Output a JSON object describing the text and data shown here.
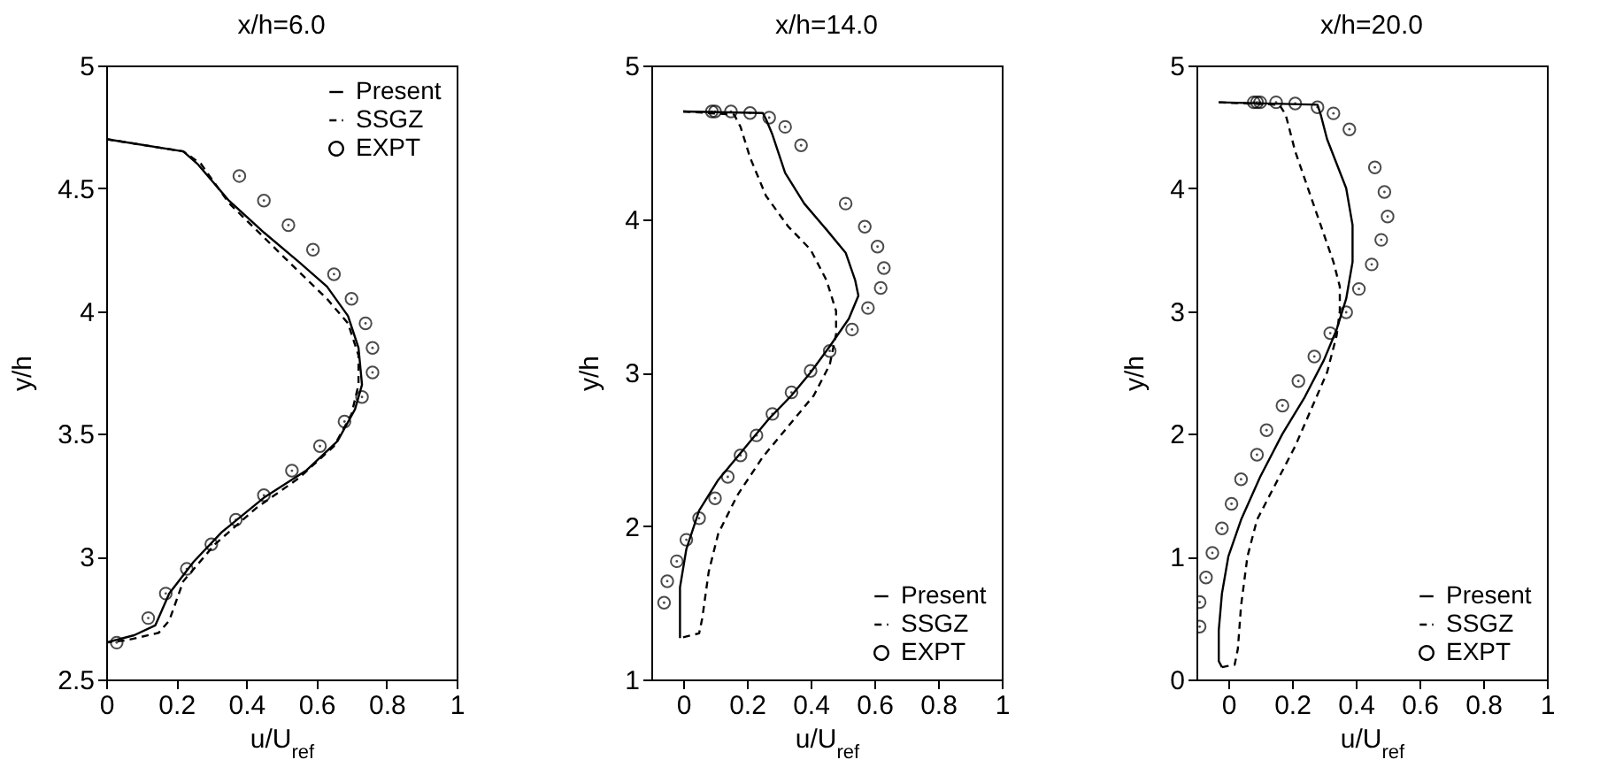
{
  "chart_data": [
    {
      "type": "line",
      "title": "x/h=6.0",
      "xlabel": "u/U$_{ref}$",
      "ylabel": "y/h",
      "xlim": [
        0,
        1
      ],
      "xticks": [
        0,
        0.2,
        0.4,
        0.6,
        0.8,
        1
      ],
      "ylim": [
        2.5,
        5
      ],
      "yticks": [
        2.5,
        3,
        3.5,
        4,
        4.5,
        5
      ],
      "legend": "top right",
      "series": [
        {
          "name": "Present",
          "type": "line",
          "color": "#000000",
          "line_style": "solid",
          "x": [
            0,
            0.22,
            0.26,
            0.35,
            0.45,
            0.55,
            0.63,
            0.69,
            0.72,
            0.73,
            0.71,
            0.66,
            0.57,
            0.45,
            0.33,
            0.25,
            0.18,
            0.14,
            0.08,
            0
          ],
          "values": [
            4.7,
            4.65,
            4.6,
            4.45,
            4.32,
            4.2,
            4.1,
            3.98,
            3.85,
            3.7,
            3.6,
            3.47,
            3.35,
            3.24,
            3.1,
            2.98,
            2.85,
            2.72,
            2.68,
            2.65
          ]
        },
        {
          "name": "SSGZ",
          "type": "line",
          "color": "#000000",
          "line_style": "dashed",
          "x": [
            0,
            0.22,
            0.27,
            0.35,
            0.45,
            0.55,
            0.63,
            0.69,
            0.72,
            0.72,
            0.7,
            0.65,
            0.55,
            0.43,
            0.31,
            0.22,
            0.18,
            0.15,
            0.06,
            0
          ],
          "values": [
            4.7,
            4.65,
            4.6,
            4.44,
            4.3,
            4.16,
            4.05,
            3.95,
            3.82,
            3.7,
            3.58,
            3.45,
            3.32,
            3.2,
            3.05,
            2.9,
            2.74,
            2.69,
            2.66,
            2.65
          ]
        },
        {
          "name": "EXPT",
          "type": "scatter",
          "color": "#000000",
          "marker": "circle",
          "x": [
            0.38,
            0.45,
            0.52,
            0.59,
            0.65,
            0.7,
            0.74,
            0.76,
            0.76,
            0.73,
            0.68,
            0.61,
            0.53,
            0.45,
            0.37,
            0.3,
            0.23,
            0.17,
            0.12,
            0.03
          ],
          "values": [
            4.55,
            4.45,
            4.35,
            4.25,
            4.15,
            4.05,
            3.95,
            3.85,
            3.75,
            3.65,
            3.55,
            3.45,
            3.35,
            3.25,
            3.15,
            3.05,
            2.95,
            2.85,
            2.75,
            2.65
          ]
        }
      ]
    },
    {
      "type": "line",
      "title": "x/h=14.0",
      "xlabel": "u/U$_{ref}$",
      "ylabel": "y/h",
      "xlim": [
        -0.1,
        1
      ],
      "xticks": [
        0,
        0.2,
        0.4,
        0.6,
        0.8,
        1
      ],
      "ylim": [
        1,
        5
      ],
      "yticks": [
        1,
        2,
        3,
        4,
        5
      ],
      "legend": "bottom right",
      "series": [
        {
          "name": "Present",
          "type": "line",
          "color": "#000000",
          "line_style": "solid",
          "x": [
            0,
            0.25,
            0.26,
            0.28,
            0.32,
            0.38,
            0.45,
            0.51,
            0.54,
            0.55,
            0.52,
            0.46,
            0.4,
            0.34,
            0.27,
            0.19,
            0.11,
            0.05,
            0.01,
            -0.01,
            -0.01,
            -0.01
          ],
          "values": [
            4.7,
            4.69,
            4.65,
            4.55,
            4.3,
            4.1,
            3.93,
            3.78,
            3.6,
            3.5,
            3.35,
            3.17,
            3.0,
            2.85,
            2.7,
            2.5,
            2.3,
            2.1,
            1.85,
            1.6,
            1.3,
            1.27
          ]
        },
        {
          "name": "SSGZ",
          "type": "line",
          "color": "#000000",
          "line_style": "dashed",
          "x": [
            0,
            0.16,
            0.18,
            0.21,
            0.26,
            0.33,
            0.4,
            0.45,
            0.48,
            0.48,
            0.46,
            0.41,
            0.33,
            0.25,
            0.17,
            0.11,
            0.08,
            0.06,
            0.05,
            -0.01
          ],
          "values": [
            4.7,
            4.68,
            4.6,
            4.4,
            4.15,
            3.95,
            3.8,
            3.6,
            3.4,
            3.25,
            3.05,
            2.85,
            2.65,
            2.45,
            2.2,
            1.95,
            1.7,
            1.4,
            1.3,
            1.27
          ]
        },
        {
          "name": "EXPT",
          "type": "scatter",
          "color": "#000000",
          "marker": "circle",
          "x": [
            0.09,
            0.1,
            0.15,
            0.21,
            0.27,
            0.32,
            0.37,
            0.51,
            0.57,
            0.61,
            0.63,
            0.62,
            0.58,
            0.53,
            0.46,
            0.4,
            0.34,
            0.28,
            0.23,
            0.18,
            0.14,
            0.1,
            0.05,
            0.01,
            -0.02,
            -0.05,
            -0.06
          ],
          "values": [
            4.7,
            4.7,
            4.7,
            4.69,
            4.66,
            4.6,
            4.48,
            4.1,
            3.95,
            3.82,
            3.68,
            3.55,
            3.42,
            3.28,
            3.14,
            3.01,
            2.87,
            2.73,
            2.59,
            2.46,
            2.32,
            2.18,
            2.05,
            1.91,
            1.77,
            1.64,
            1.5
          ]
        }
      ]
    },
    {
      "type": "line",
      "title": "x/h=20.0",
      "xlabel": "u/U$_{ref}$",
      "ylabel": "y/h",
      "xlim": [
        -0.1,
        1
      ],
      "xticks": [
        0,
        0.2,
        0.4,
        0.6,
        0.8,
        1
      ],
      "ylim": [
        0,
        5
      ],
      "yticks": [
        0,
        1,
        2,
        3,
        4,
        5
      ],
      "legend": "bottom right",
      "series": [
        {
          "name": "Present",
          "type": "line",
          "color": "#000000",
          "line_style": "solid",
          "x": [
            -0.03,
            0.28,
            0.29,
            0.31,
            0.34,
            0.37,
            0.39,
            0.39,
            0.37,
            0.34,
            0.3,
            0.24,
            0.17,
            0.1,
            0.04,
            0,
            -0.02,
            -0.03,
            -0.03,
            -0.02
          ],
          "values": [
            4.7,
            4.68,
            4.6,
            4.4,
            4.2,
            4.0,
            3.7,
            3.4,
            3.1,
            2.85,
            2.6,
            2.3,
            2.0,
            1.65,
            1.3,
            1.0,
            0.7,
            0.4,
            0.15,
            0.1
          ]
        },
        {
          "name": "SSGZ",
          "type": "line",
          "color": "#000000",
          "line_style": "dashed",
          "x": [
            -0.03,
            0.16,
            0.18,
            0.21,
            0.25,
            0.29,
            0.33,
            0.35,
            0.35,
            0.34,
            0.31,
            0.26,
            0.21,
            0.15,
            0.09,
            0.06,
            0.04,
            0.03,
            0.02,
            -0.02
          ],
          "values": [
            4.7,
            4.68,
            4.6,
            4.3,
            4.0,
            3.7,
            3.4,
            3.2,
            3.0,
            2.8,
            2.5,
            2.2,
            1.9,
            1.6,
            1.3,
            1.0,
            0.6,
            0.25,
            0.12,
            0.1
          ]
        },
        {
          "name": "EXPT",
          "type": "scatter",
          "color": "#000000",
          "marker": "circle",
          "x": [
            0.08,
            0.09,
            0.1,
            0.15,
            0.21,
            0.28,
            0.33,
            0.38,
            0.46,
            0.49,
            0.5,
            0.48,
            0.45,
            0.41,
            0.37,
            0.32,
            0.27,
            0.22,
            0.17,
            0.12,
            0.09,
            0.04,
            0.01,
            -0.02,
            -0.05,
            -0.07,
            -0.09,
            -0.09
          ],
          "values": [
            4.7,
            4.7,
            4.7,
            4.7,
            4.69,
            4.66,
            4.61,
            4.48,
            4.17,
            3.97,
            3.77,
            3.58,
            3.38,
            3.18,
            2.99,
            2.82,
            2.63,
            2.43,
            2.23,
            2.03,
            1.83,
            1.63,
            1.43,
            1.23,
            1.03,
            0.83,
            0.63,
            0.43
          ]
        }
      ]
    }
  ]
}
